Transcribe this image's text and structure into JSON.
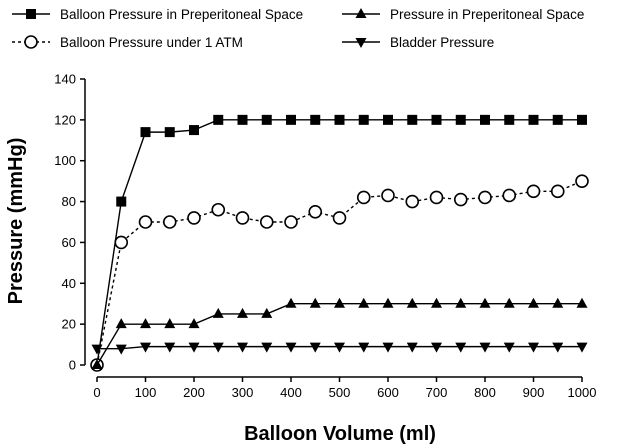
{
  "chart_data": {
    "type": "line",
    "xlabel": "Balloon Volume (ml)",
    "ylabel": "Pressure (mmHg)",
    "xlim": [
      0,
      1000
    ],
    "ylim": [
      0,
      140
    ],
    "xticks": [
      0,
      100,
      200,
      300,
      400,
      500,
      600,
      700,
      800,
      900,
      1000
    ],
    "yticks": [
      0,
      20,
      40,
      60,
      80,
      100,
      120,
      140
    ],
    "grid": false,
    "legend_position": "top",
    "x": [
      0,
      50,
      100,
      150,
      200,
      250,
      300,
      350,
      400,
      450,
      500,
      550,
      600,
      650,
      700,
      750,
      800,
      850,
      900,
      950,
      1000
    ],
    "series": [
      {
        "name": "Balloon Pressure in Preperitoneal Space",
        "marker": "square",
        "line": "solid",
        "values": [
          0,
          80,
          114,
          114,
          115,
          120,
          120,
          120,
          120,
          120,
          120,
          120,
          120,
          120,
          120,
          120,
          120,
          120,
          120,
          120,
          120
        ]
      },
      {
        "name": "Balloon Pressure under 1 ATM",
        "marker": "circle-open",
        "line": "dashed",
        "values": [
          0,
          60,
          70,
          70,
          72,
          76,
          72,
          70,
          70,
          75,
          72,
          82,
          83,
          80,
          82,
          81,
          82,
          83,
          85,
          85,
          90
        ]
      },
      {
        "name": "Pressure in Preperitoneal Space",
        "marker": "triangle-up",
        "line": "solid",
        "values": [
          0,
          20,
          20,
          20,
          20,
          25,
          25,
          25,
          30,
          30,
          30,
          30,
          30,
          30,
          30,
          30,
          30,
          30,
          30,
          30,
          30
        ]
      },
      {
        "name": "Bladder Pressure",
        "marker": "triangle-down",
        "line": "solid",
        "values": [
          8,
          8,
          9,
          9,
          9,
          9,
          9,
          9,
          9,
          9,
          9,
          9,
          9,
          9,
          9,
          9,
          9,
          9,
          9,
          9,
          9
        ]
      }
    ]
  }
}
